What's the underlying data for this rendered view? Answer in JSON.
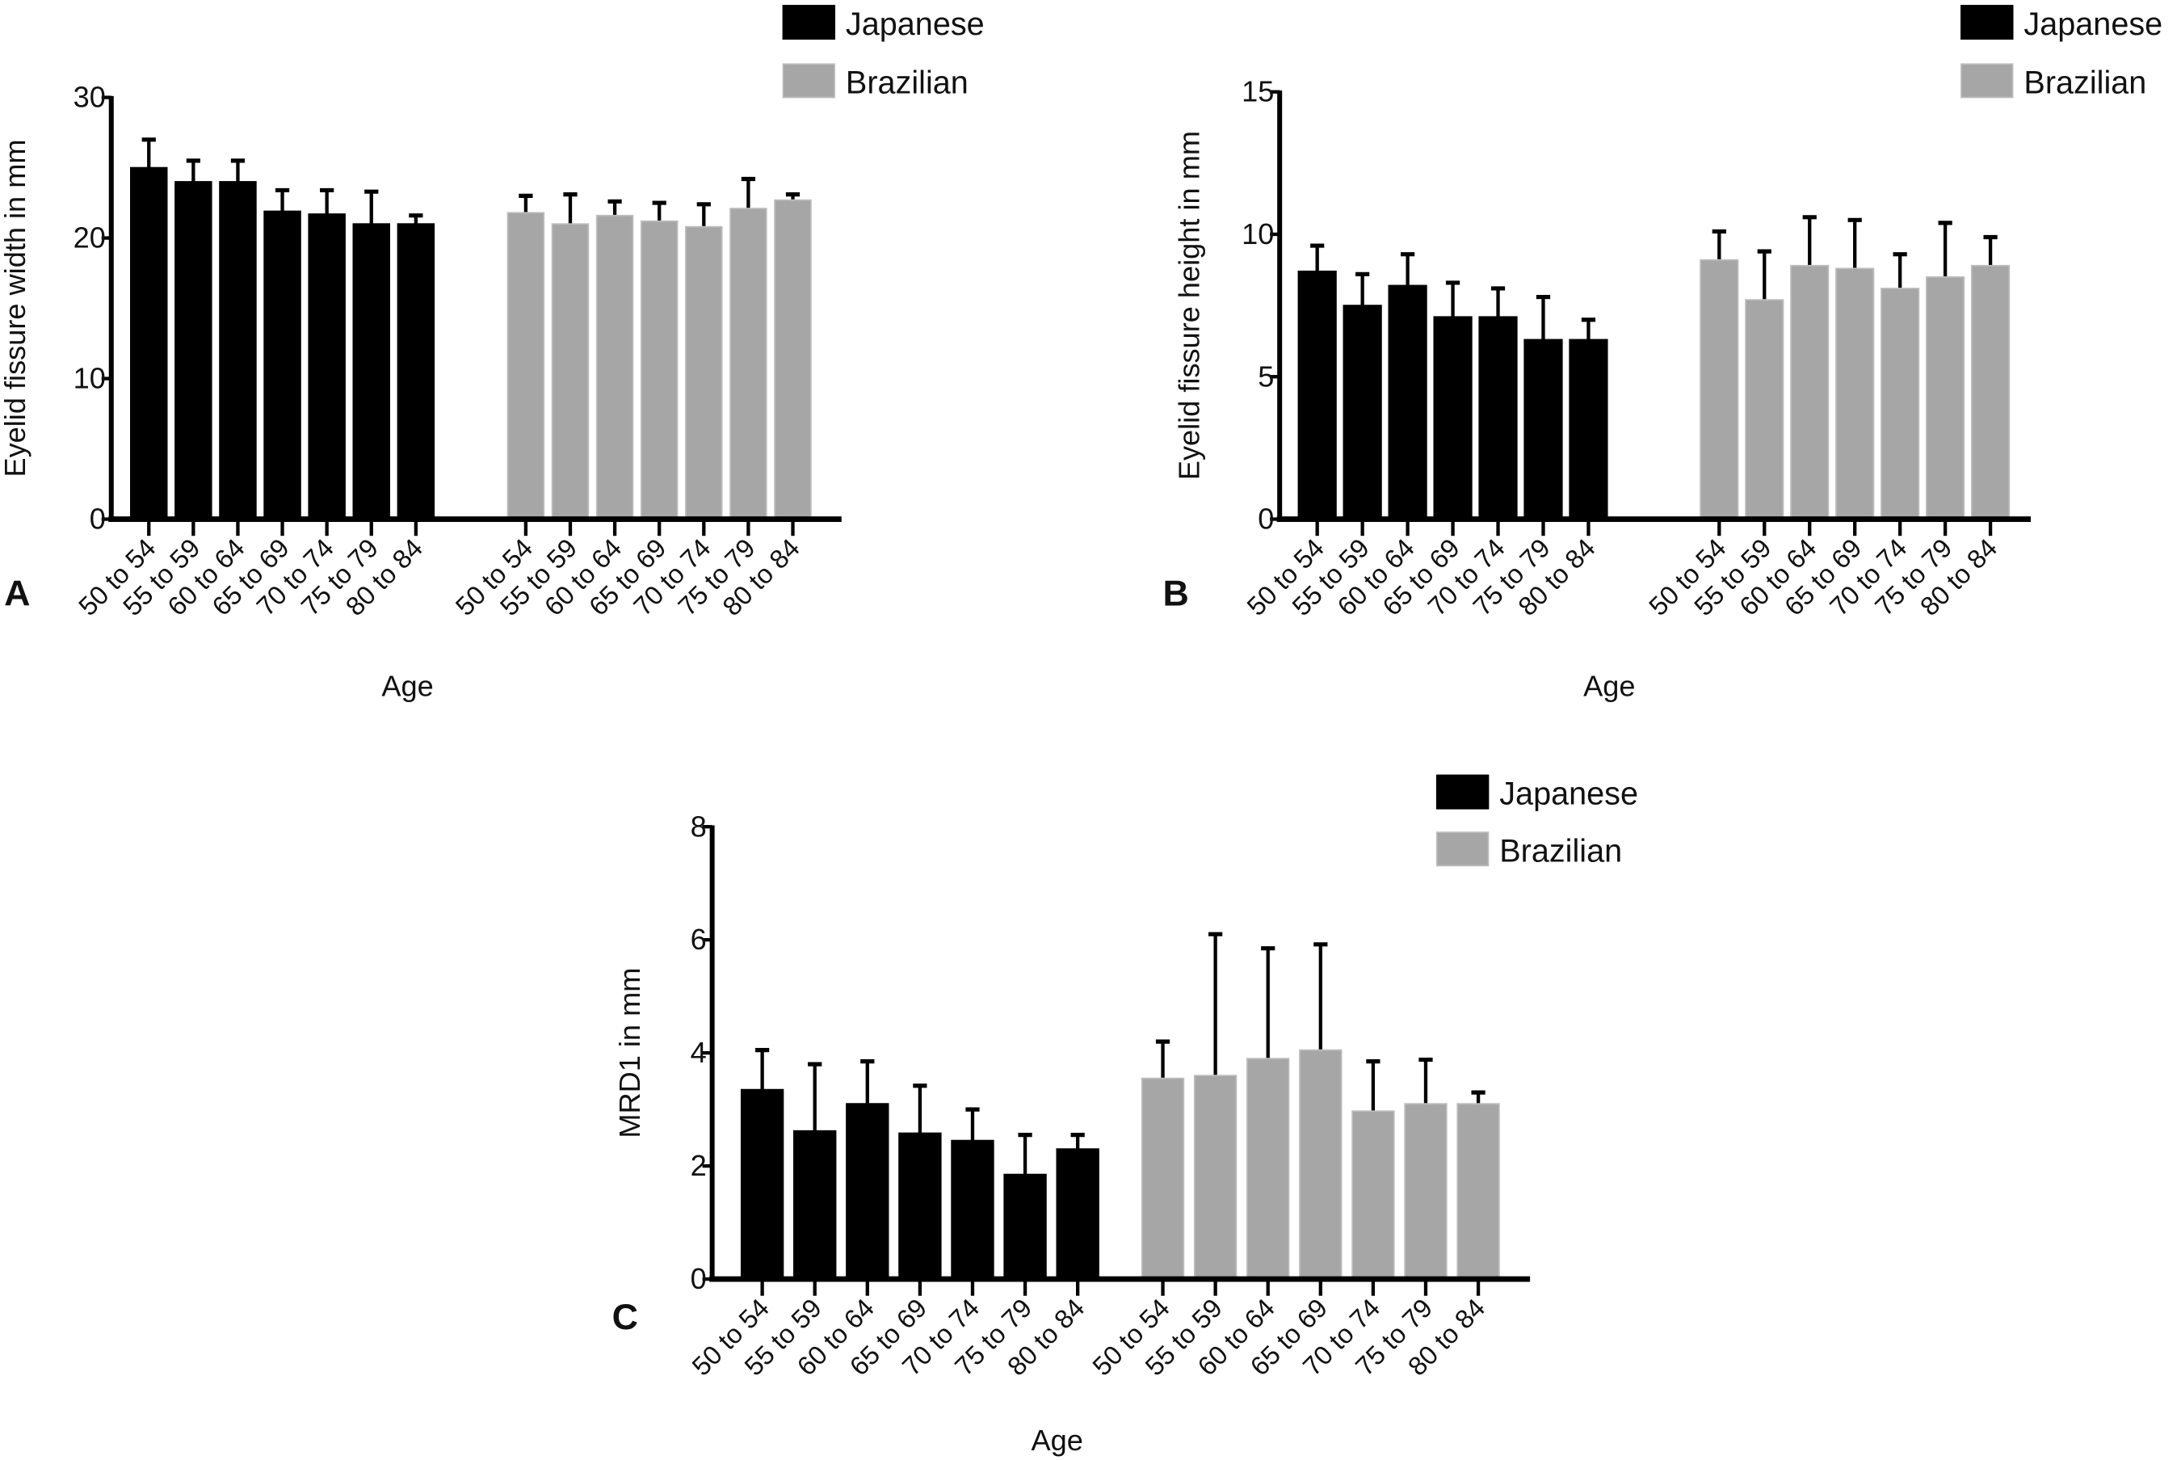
{
  "chart_data": [
    {
      "type": "bar",
      "panel_label": "A",
      "xlabel": "Age",
      "ylabel": "Eyelid fissure width in mm",
      "ylim": [
        0,
        30
      ],
      "yticks": [
        0,
        10,
        20,
        30
      ],
      "categories": [
        "50 to 54",
        "55 to 59",
        "60 to 64",
        "65 to 69",
        "70 to 74",
        "75 to 79",
        "80 to 84"
      ],
      "legend_position": "top-right",
      "grid": false,
      "series": [
        {
          "name": "Japanese",
          "color": "#000000",
          "values": [
            25.0,
            24.0,
            24.0,
            21.9,
            21.7,
            21.0,
            21.0
          ],
          "error": [
            2.0,
            1.5,
            1.5,
            1.5,
            1.7,
            2.3,
            0.6
          ]
        },
        {
          "name": "Brazilian",
          "color": "#a6a6a6",
          "values": [
            21.8,
            21.0,
            21.6,
            21.2,
            20.8,
            22.1,
            22.7
          ],
          "error": [
            1.2,
            2.1,
            1.0,
            1.3,
            1.6,
            2.1,
            0.4
          ]
        }
      ]
    },
    {
      "type": "bar",
      "panel_label": "B",
      "xlabel": "Age",
      "ylabel": "Eyelid fissure height in mm",
      "ylim": [
        0,
        15
      ],
      "yticks": [
        0,
        5,
        10,
        15
      ],
      "categories": [
        "50 to 54",
        "55 to 59",
        "60 to 64",
        "65 to 69",
        "70 to 74",
        "75 to 79",
        "80 to 84"
      ],
      "legend_position": "top-right",
      "grid": false,
      "series": [
        {
          "name": "Japanese",
          "color": "#000000",
          "values": [
            8.7,
            7.5,
            8.2,
            7.1,
            7.1,
            6.3,
            6.3
          ],
          "error": [
            0.9,
            1.1,
            1.1,
            1.2,
            1.0,
            1.5,
            0.7
          ]
        },
        {
          "name": "Brazilian",
          "color": "#a6a6a6",
          "values": [
            9.1,
            7.7,
            8.9,
            8.8,
            8.1,
            8.5,
            8.9
          ],
          "error": [
            1.0,
            1.7,
            1.7,
            1.7,
            1.2,
            1.9,
            1.0
          ]
        }
      ]
    },
    {
      "type": "bar",
      "panel_label": "C",
      "xlabel": "Age",
      "ylabel": "MRD1 in mm",
      "ylim": [
        0,
        8
      ],
      "yticks": [
        0,
        2,
        4,
        6,
        8
      ],
      "categories": [
        "50 to 54",
        "55 to 59",
        "60 to 64",
        "65 to 69",
        "70 to 74",
        "75 to 79",
        "80 to 84"
      ],
      "legend_position": "top-right",
      "grid": false,
      "series": [
        {
          "name": "Japanese",
          "color": "#000000",
          "values": [
            3.35,
            2.62,
            3.1,
            2.58,
            2.45,
            1.85,
            2.3
          ],
          "error": [
            0.7,
            1.18,
            0.75,
            0.84,
            0.55,
            0.7,
            0.25
          ]
        },
        {
          "name": "Brazilian",
          "color": "#a6a6a6",
          "values": [
            3.55,
            3.6,
            3.9,
            4.05,
            2.97,
            3.1,
            3.1
          ],
          "error": [
            0.65,
            2.5,
            1.95,
            1.87,
            0.88,
            0.78,
            0.2
          ]
        }
      ]
    }
  ]
}
